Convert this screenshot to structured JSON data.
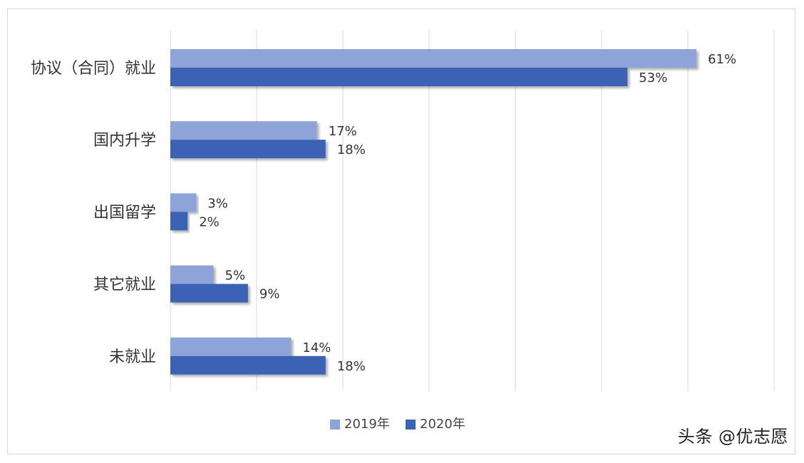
{
  "chart_data": {
    "type": "bar",
    "orientation": "horizontal",
    "categories": [
      "协议（合同）就业",
      "国内升学",
      "出国留学",
      "其它就业",
      "未就业"
    ],
    "series": [
      {
        "name": "2019年",
        "values": [
          61,
          17,
          3,
          5,
          14
        ],
        "color": "#8ea3d8"
      },
      {
        "name": "2020年",
        "values": [
          53,
          18,
          2,
          9,
          18
        ],
        "color": "#3a62b5"
      }
    ],
    "value_suffix": "%",
    "xlim": [
      0,
      70
    ],
    "grid": true,
    "legend_position": "bottom"
  },
  "watermark": {
    "text": "头条 @优志愿"
  }
}
